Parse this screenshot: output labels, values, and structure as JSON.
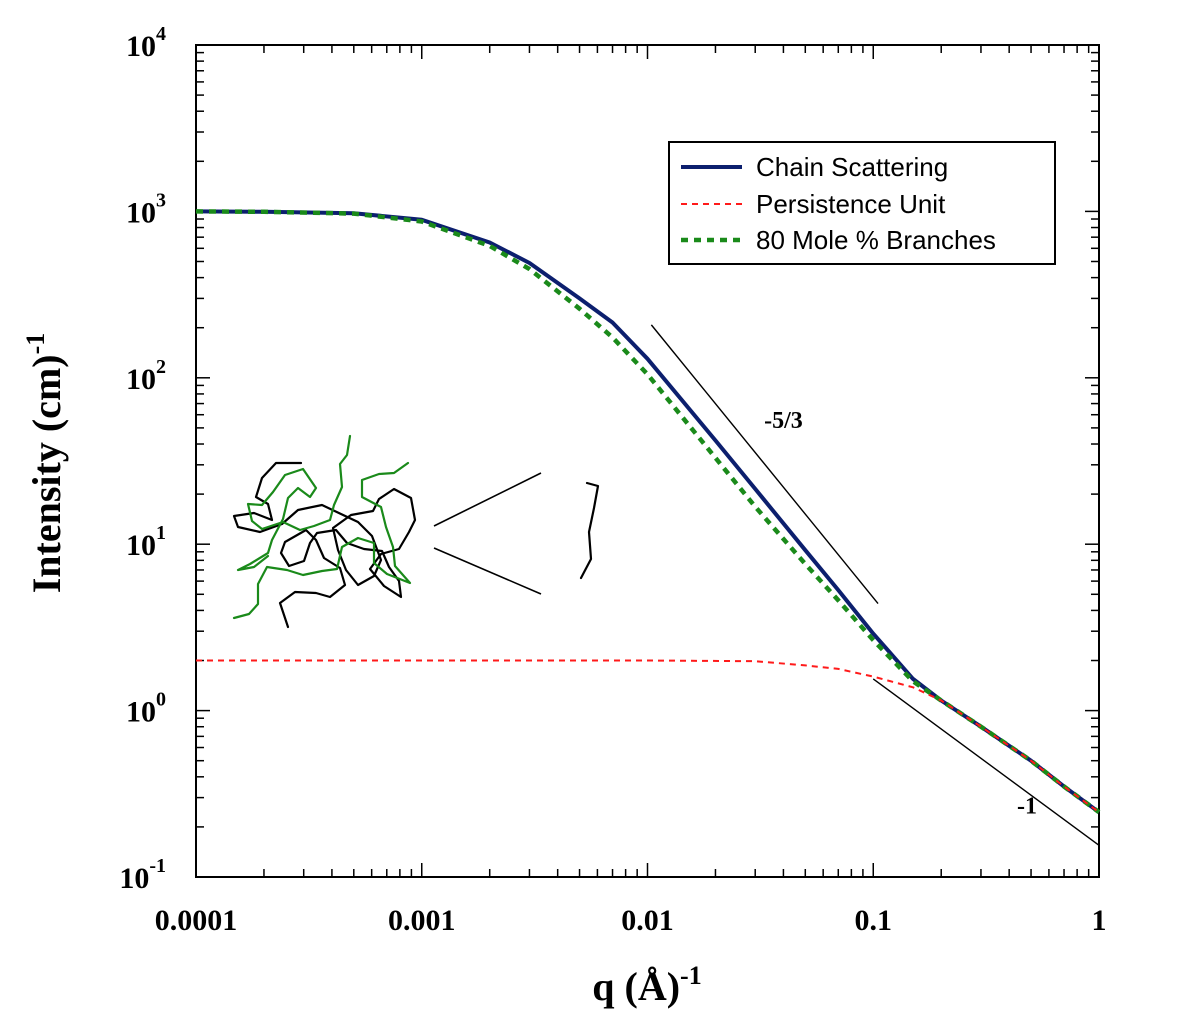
{
  "chart_data": {
    "type": "line",
    "xscale": "log",
    "yscale": "log",
    "xlim": [
      0.0001,
      1
    ],
    "ylim": [
      0.1,
      10000
    ],
    "xlabel": {
      "base": "q (Å)",
      "sup": "-1"
    },
    "ylabel": {
      "base": "Intensity (cm)",
      "sup": "-1"
    },
    "x_ticks": [
      {
        "value": 0.0001,
        "label": "0.0001"
      },
      {
        "value": 0.001,
        "label": "0.001"
      },
      {
        "value": 0.01,
        "label": "0.01"
      },
      {
        "value": 0.1,
        "label": "0.1"
      },
      {
        "value": 1,
        "label": "1"
      }
    ],
    "y_ticks": [
      {
        "value": 10000,
        "base": "10",
        "exp": "4"
      },
      {
        "value": 1000,
        "base": "10",
        "exp": "3"
      },
      {
        "value": 100,
        "base": "10",
        "exp": "2"
      },
      {
        "value": 10,
        "base": "10",
        "exp": "1"
      },
      {
        "value": 1,
        "base": "10",
        "exp": "0"
      },
      {
        "value": 0.1,
        "base": "10",
        "exp": "-1"
      }
    ],
    "grid": false,
    "legend_position": "top-right",
    "series": [
      {
        "name": "Chain Scattering",
        "color": "#0c1f6e",
        "style": "solid",
        "points": [
          [
            0.0001,
            1000
          ],
          [
            0.0002,
            995
          ],
          [
            0.0005,
            975
          ],
          [
            0.001,
            890
          ],
          [
            0.002,
            650
          ],
          [
            0.003,
            490
          ],
          [
            0.005,
            300
          ],
          [
            0.007,
            215
          ],
          [
            0.01,
            130
          ],
          [
            0.02,
            42
          ],
          [
            0.03,
            21.5
          ],
          [
            0.05,
            9.2
          ],
          [
            0.07,
            5.3
          ],
          [
            0.1,
            2.9
          ],
          [
            0.15,
            1.55
          ],
          [
            0.2,
            1.15
          ],
          [
            0.3,
            0.8
          ],
          [
            0.5,
            0.5
          ],
          [
            0.7,
            0.35
          ],
          [
            1,
            0.245
          ]
        ]
      },
      {
        "name": "Persistence Unit",
        "color": "#ff1a1a",
        "style": "dashed",
        "points": [
          [
            0.0001,
            2.0
          ],
          [
            0.001,
            2.0
          ],
          [
            0.01,
            2.0
          ],
          [
            0.03,
            1.98
          ],
          [
            0.05,
            1.87
          ],
          [
            0.07,
            1.78
          ],
          [
            0.1,
            1.6
          ],
          [
            0.15,
            1.38
          ],
          [
            0.2,
            1.15
          ],
          [
            0.3,
            0.8
          ],
          [
            0.5,
            0.5
          ],
          [
            0.7,
            0.35
          ],
          [
            1,
            0.245
          ]
        ]
      },
      {
        "name": "80 Mole % Branches",
        "color": "#1a8a1a",
        "style": "dotted",
        "points": [
          [
            0.0001,
            1000
          ],
          [
            0.0002,
            995
          ],
          [
            0.0005,
            970
          ],
          [
            0.001,
            870
          ],
          [
            0.002,
            620
          ],
          [
            0.003,
            450
          ],
          [
            0.005,
            260
          ],
          [
            0.007,
            175
          ],
          [
            0.01,
            105
          ],
          [
            0.02,
            33
          ],
          [
            0.03,
            16.8
          ],
          [
            0.05,
            7.6
          ],
          [
            0.07,
            4.6
          ],
          [
            0.1,
            2.65
          ],
          [
            0.15,
            1.5
          ],
          [
            0.2,
            1.15
          ],
          [
            0.3,
            0.8
          ],
          [
            0.5,
            0.5
          ],
          [
            0.7,
            0.35
          ],
          [
            1,
            0.245
          ]
        ]
      }
    ],
    "slope_lines": [
      {
        "label": "-5/3",
        "x0": 0.0104,
        "y0": 208,
        "x1": 0.105,
        "y1": 4.4,
        "label_x": 0.04,
        "label_y": 50
      },
      {
        "label": "-1",
        "x0": 0.1,
        "y0": 1.55,
        "x1": 1,
        "y1": 0.155,
        "label_x": 0.48,
        "label_y": 0.24
      }
    ]
  }
}
